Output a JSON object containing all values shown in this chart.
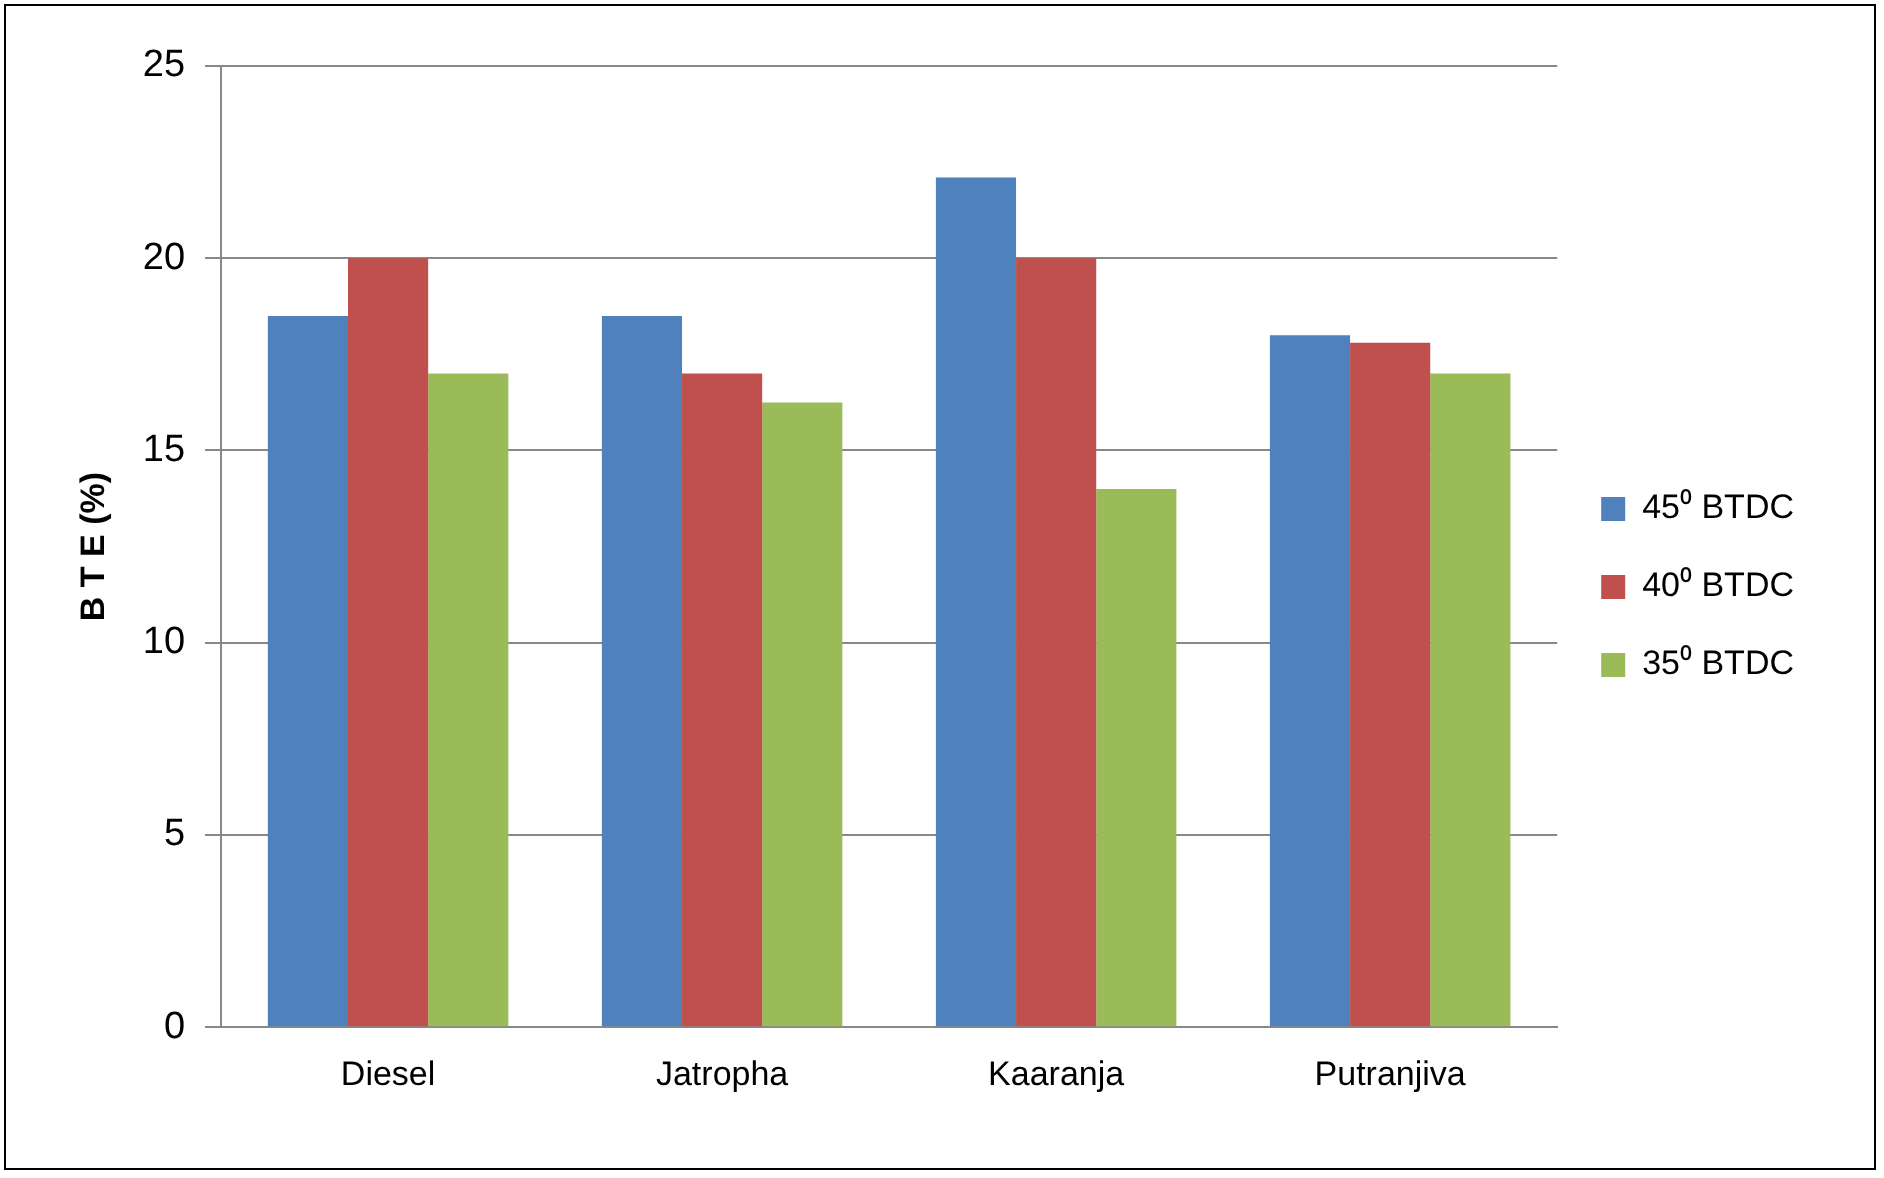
{
  "chart_data": {
    "type": "bar",
    "ylabel": "B T E (%)",
    "categories": [
      "Diesel",
      "Jatropha",
      "Kaaranja",
      "Putranjiva"
    ],
    "series": [
      {
        "name": "45⁰ BTDC",
        "color": "#4f81bd",
        "values": [
          18.5,
          18.5,
          22.1,
          18
        ]
      },
      {
        "name": "40⁰ BTDC",
        "color": "#c0504d",
        "values": [
          20,
          17,
          20,
          17.8
        ]
      },
      {
        "name": "35⁰ BTDC",
        "color": "#9bbb59",
        "values": [
          17,
          16.25,
          14,
          17
        ]
      }
    ],
    "ylim": [
      0,
      25
    ],
    "yticks": [
      0,
      5,
      10,
      15,
      20,
      25
    ],
    "grid": "y",
    "legend": "right"
  }
}
